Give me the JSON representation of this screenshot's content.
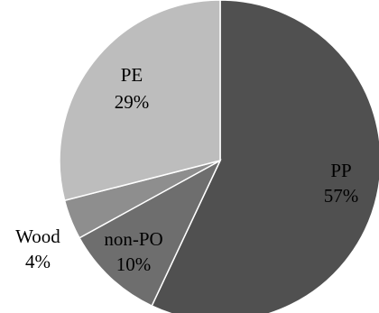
{
  "chart_data": {
    "type": "pie",
    "title": "",
    "slices": [
      {
        "name": "PP",
        "value": 57,
        "label": "57%",
        "color": "#505050"
      },
      {
        "name": "non-PO",
        "value": 10,
        "label": "10%",
        "color": "#6e6e6e"
      },
      {
        "name": "Wood",
        "value": 4,
        "label": "4%",
        "color": "#8e8e8e"
      },
      {
        "name": "PE",
        "value": 29,
        "label": "29%",
        "color": "#bdbdbd"
      }
    ],
    "start": "12 o'clock",
    "direction": "clockwise",
    "legend": "none",
    "slice_border_color": "#ffffff"
  }
}
